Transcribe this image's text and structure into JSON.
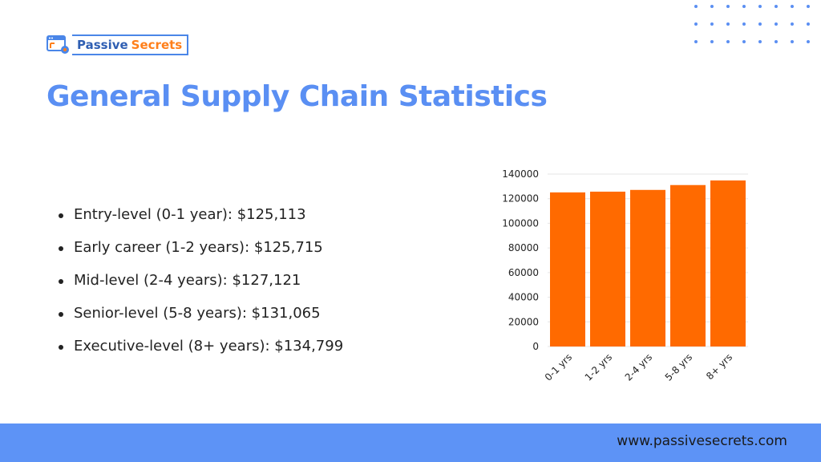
{
  "brand": {
    "word1": "Passive",
    "word2": "Secrets"
  },
  "page": {
    "title": "General Supply Chain Statistics"
  },
  "stats": [
    "Entry-level (0-1 year): $125,113",
    "Early career (1-2 years): $125,715",
    "Mid-level (2-4 years): $127,121",
    "Senior-level (5-8 years): $131,065",
    "Executive-level (8+ years): $134,799"
  ],
  "colors": {
    "accent": "#5a8ff3",
    "bar": "#ff6a00",
    "footer": "#5d93f6"
  },
  "footer": {
    "url": "www.passivesecrets.com"
  },
  "chart_data": {
    "type": "bar",
    "categories": [
      "0-1 yrs",
      "1-2 yrs",
      "2-4 yrs",
      "5-8 yrs",
      "8+ yrs"
    ],
    "values": [
      125113,
      125715,
      127121,
      131065,
      134799
    ],
    "ylim": [
      0,
      140000
    ],
    "yticks": [
      0,
      20000,
      40000,
      60000,
      80000,
      100000,
      120000,
      140000
    ],
    "title": "",
    "xlabel": "",
    "ylabel": "",
    "grid": true
  }
}
